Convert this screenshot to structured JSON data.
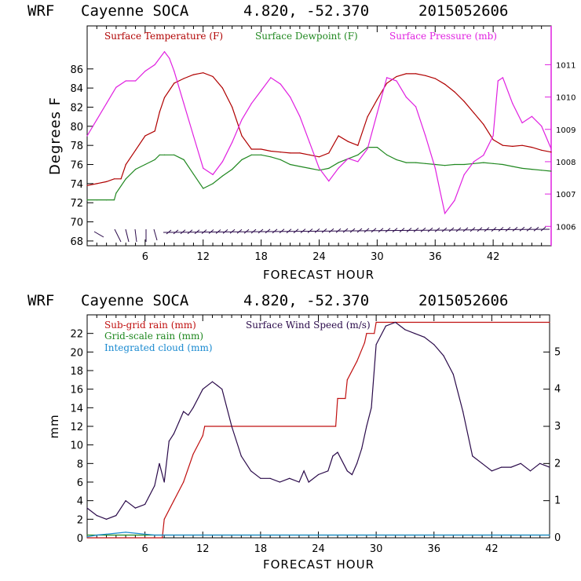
{
  "colors": {
    "temperature": "#b00000",
    "dewpoint": "#208820",
    "pressure": "#e020e0",
    "wind": "#2a0a4a",
    "subgrid": "#c01010",
    "gridscale": "#208820",
    "cloud": "#1a8ad0",
    "axis": "#000000"
  },
  "chart_data": [
    {
      "type": "line",
      "header": {
        "model": "WRF",
        "station": "Cayenne SOCA",
        "coords": "4.820, -52.370",
        "run": "2015052606"
      },
      "xlabel": "FORECAST HOUR",
      "ylabel": "Degrees F",
      "xlim": [
        0,
        48
      ],
      "ylim": [
        67.5,
        90.5
      ],
      "y2lim": [
        1005.4,
        1012.2
      ],
      "x_ticks": [
        6,
        12,
        18,
        24,
        30,
        36,
        42
      ],
      "x_tick_labels": [
        "6",
        "12",
        "18",
        "24",
        "30",
        "36",
        "42"
      ],
      "y_ticks": [
        68,
        70,
        72,
        74,
        76,
        78,
        80,
        82,
        84,
        86
      ],
      "y_tick_labels": [
        "68",
        "70",
        "72",
        "74",
        "76",
        "78",
        "80",
        "82",
        "84",
        "86"
      ],
      "y2_ticks": [
        1006,
        1007,
        1008,
        1009,
        1010,
        1011
      ],
      "y2_tick_labels": [
        "1006",
        "1007",
        "1008",
        "1009",
        "1010",
        "1011"
      ],
      "legend": [
        "Surface Temperature (F)",
        "Surface Dewpoint (F)",
        "Surface Pressure (mb)"
      ],
      "series": [
        {
          "name": "Surface Temperature (F)",
          "axis": "left",
          "x": [
            0,
            1,
            2,
            2.8,
            3.5,
            4,
            5,
            6,
            7,
            7.5,
            8,
            9,
            10,
            11,
            12,
            13,
            14,
            15,
            16,
            17,
            18,
            19,
            20,
            21,
            22,
            23,
            24,
            25,
            26,
            27,
            28,
            29,
            30,
            31,
            32,
            33,
            34,
            35,
            36,
            37,
            38,
            39,
            40,
            41,
            42,
            43,
            44,
            45,
            46,
            47,
            48
          ],
          "y": [
            73.8,
            74,
            74.2,
            74.5,
            74.5,
            76,
            77.5,
            79,
            79.5,
            81.5,
            83,
            84.5,
            85,
            85.4,
            85.6,
            85.2,
            84,
            82,
            79,
            77.6,
            77.6,
            77.4,
            77.3,
            77.2,
            77.2,
            77,
            76.8,
            77.2,
            79,
            78.4,
            78,
            81,
            82.8,
            84.5,
            85.2,
            85.5,
            85.5,
            85.3,
            85,
            84.4,
            83.6,
            82.6,
            81.4,
            80.2,
            78.6,
            78,
            77.9,
            78,
            77.8,
            77.5,
            77.3
          ]
        },
        {
          "name": "Surface Dewpoint (F)",
          "axis": "left",
          "x": [
            0,
            1,
            2,
            2.8,
            3,
            4,
            5,
            6,
            7,
            7.5,
            8,
            9,
            10,
            11,
            12,
            13,
            14,
            15,
            16,
            17,
            18,
            19,
            20,
            21,
            22,
            23,
            24,
            25,
            26,
            27,
            28,
            29,
            30,
            31,
            32,
            33,
            34,
            35,
            36,
            37,
            38,
            39,
            40,
            41,
            42,
            43,
            44,
            45,
            46,
            47,
            48
          ],
          "y": [
            72.3,
            72.3,
            72.3,
            72.3,
            73,
            74.5,
            75.5,
            76,
            76.5,
            77,
            77,
            77,
            76.5,
            75,
            73.5,
            74,
            74.8,
            75.5,
            76.5,
            77,
            77,
            76.8,
            76.5,
            76,
            75.8,
            75.6,
            75.4,
            75.6,
            76.2,
            76.6,
            77,
            77.8,
            77.8,
            77,
            76.5,
            76.2,
            76.2,
            76.1,
            76,
            75.9,
            76,
            76,
            76.1,
            76.2,
            76.1,
            76,
            75.8,
            75.6,
            75.5,
            75.4,
            75.3
          ]
        },
        {
          "name": "Surface Pressure (mb)",
          "axis": "right",
          "x": [
            0,
            1,
            2,
            3,
            4,
            5,
            6,
            7,
            8,
            8.5,
            9,
            10,
            11,
            12,
            13,
            14,
            15,
            16,
            17,
            18,
            19,
            20,
            21,
            22,
            23,
            24,
            25,
            26,
            27,
            28,
            29,
            30,
            31,
            32,
            33,
            34,
            35,
            36,
            36.5,
            37,
            38,
            39,
            40,
            41,
            42,
            42.5,
            43,
            44,
            45,
            46,
            47,
            48
          ],
          "y": [
            1008.8,
            1009.3,
            1009.8,
            1010.3,
            1010.5,
            1010.5,
            1010.8,
            1011,
            1011.4,
            1011.2,
            1010.8,
            1009.8,
            1008.8,
            1007.8,
            1007.6,
            1008,
            1008.6,
            1009.3,
            1009.8,
            1010.2,
            1010.6,
            1010.4,
            1010,
            1009.4,
            1008.6,
            1007.8,
            1007.4,
            1007.8,
            1008.1,
            1008,
            1008.4,
            1009.5,
            1010.6,
            1010.5,
            1010,
            1009.7,
            1008.8,
            1007.8,
            1007.1,
            1006.4,
            1006.8,
            1007.6,
            1008,
            1008.2,
            1008.8,
            1010.5,
            1010.6,
            1009.8,
            1009.2,
            1009.4,
            1009.1,
            1008.4
          ]
        }
      ]
    },
    {
      "type": "line",
      "header": {
        "model": "WRF",
        "station": "Cayenne SOCA",
        "coords": "4.820, -52.370",
        "run": "2015052606"
      },
      "xlabel": "FORECAST HOUR",
      "ylabel": "mm",
      "xlim": [
        0,
        48
      ],
      "ylim": [
        0,
        24
      ],
      "y2lim": [
        0,
        6
      ],
      "x_ticks": [
        6,
        12,
        18,
        24,
        30,
        36,
        42
      ],
      "x_tick_labels": [
        "6",
        "12",
        "18",
        "24",
        "30",
        "36",
        "42"
      ],
      "y_ticks": [
        0,
        2,
        4,
        6,
        8,
        10,
        12,
        14,
        16,
        18,
        20,
        22
      ],
      "y_tick_labels": [
        "0",
        "2",
        "4",
        "6",
        "8",
        "10",
        "12",
        "14",
        "16",
        "18",
        "20",
        "22"
      ],
      "y2_ticks": [
        0,
        1,
        2,
        3,
        4,
        5
      ],
      "y2_tick_labels": [
        "0",
        "1",
        "2",
        "3",
        "4",
        "5"
      ],
      "legend": [
        "Sub-grid rain (mm)",
        "Grid-scale rain (mm)",
        "Integrated cloud (mm)",
        "Surface Wind Speed (m/s)"
      ],
      "series": [
        {
          "name": "Sub-grid rain (mm)",
          "axis": "left",
          "x": [
            0,
            7.8,
            8,
            9,
            10,
            11,
            12,
            12.2,
            25.8,
            26,
            26.8,
            27,
            28,
            28.8,
            29,
            29.8,
            30,
            48
          ],
          "y": [
            0,
            0,
            2,
            4,
            6,
            9,
            11,
            12,
            12,
            15,
            15,
            17,
            19,
            21,
            22,
            22,
            23.2,
            23.2
          ]
        },
        {
          "name": "Grid-scale rain (mm)",
          "axis": "left",
          "x": [
            0,
            48
          ],
          "y": [
            0.3,
            0.3
          ]
        },
        {
          "name": "Integrated cloud (mm)",
          "axis": "left",
          "x": [
            0,
            1,
            2,
            3,
            4,
            5,
            6,
            7,
            8,
            10,
            20,
            30,
            48
          ],
          "y": [
            0.1,
            0.3,
            0.4,
            0.5,
            0.6,
            0.5,
            0.4,
            0.3,
            0.3,
            0.3,
            0.3,
            0.3,
            0.3
          ]
        },
        {
          "name": "Surface Wind Speed (m/s)",
          "axis": "right",
          "x": [
            0,
            1,
            2,
            3,
            4,
            5,
            6,
            7,
            7.5,
            8,
            8.5,
            9,
            9.5,
            10,
            10.5,
            11,
            12,
            13,
            13.5,
            14,
            15,
            16,
            17,
            18,
            19,
            20,
            21,
            22,
            22.5,
            23,
            24,
            25,
            25.5,
            26,
            27,
            27.5,
            28,
            28.5,
            29,
            29.5,
            30,
            31,
            32,
            33,
            34,
            35,
            36,
            37,
            38,
            39,
            40,
            41,
            42,
            43,
            44,
            45,
            46,
            47,
            48
          ],
          "y": [
            0.8,
            0.6,
            0.5,
            0.6,
            1,
            0.8,
            0.9,
            1.4,
            2,
            1.5,
            2.6,
            2.8,
            3.1,
            3.4,
            3.3,
            3.5,
            4,
            4.2,
            4.1,
            4,
            3,
            2.2,
            1.8,
            1.6,
            1.6,
            1.5,
            1.6,
            1.5,
            1.8,
            1.5,
            1.7,
            1.8,
            2.2,
            2.3,
            1.8,
            1.7,
            2,
            2.4,
            3,
            3.5,
            5.2,
            5.7,
            5.8,
            5.6,
            5.5,
            5.4,
            5.2,
            4.9,
            4.4,
            3.4,
            2.2,
            2,
            1.8,
            1.9,
            1.9,
            2,
            1.8,
            2,
            1.9
          ]
        }
      ]
    }
  ]
}
